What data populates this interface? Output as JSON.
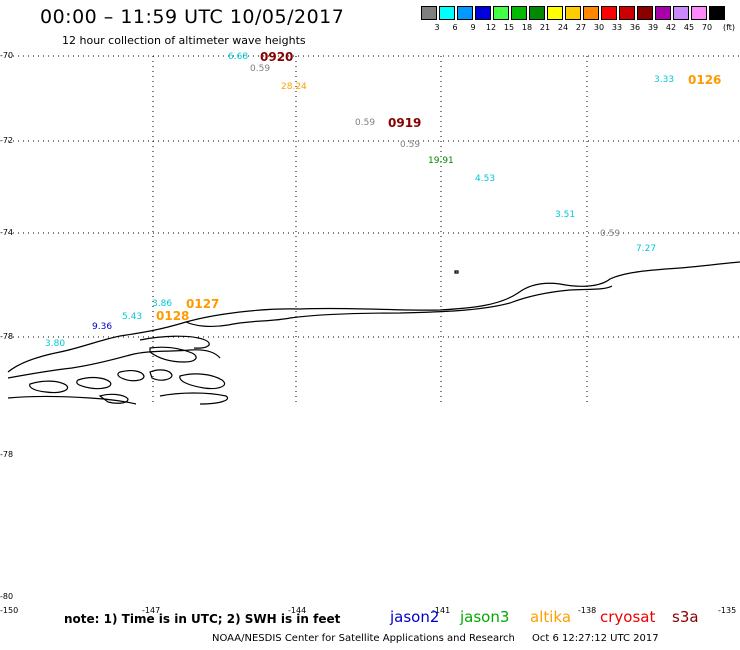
{
  "title": "00:00 – 11:59 UTC 10/05/2017",
  "subtitle": "12 hour collection of altimeter wave heights",
  "scale": {
    "unit": "(ft)",
    "steps": [
      {
        "label": "3",
        "color": "#7f7f7f"
      },
      {
        "label": "6",
        "color": "#00ffff"
      },
      {
        "label": "9",
        "color": "#0099ff"
      },
      {
        "label": "12",
        "color": "#0000dd"
      },
      {
        "label": "15",
        "color": "#44ff44"
      },
      {
        "label": "18",
        "color": "#00bb00"
      },
      {
        "label": "21",
        "color": "#008800"
      },
      {
        "label": "24",
        "color": "#ffff00"
      },
      {
        "label": "27",
        "color": "#ffcc00"
      },
      {
        "label": "30",
        "color": "#ff8800"
      },
      {
        "label": "33",
        "color": "#ff0000"
      },
      {
        "label": "36",
        "color": "#cc0000"
      },
      {
        "label": "39",
        "color": "#880000"
      },
      {
        "label": "42",
        "color": "#aa00aa"
      },
      {
        "label": "45",
        "color": "#cc88ff"
      },
      {
        "label": "70",
        "color": "#ff88ff"
      },
      {
        "label": "",
        "color": "#000000"
      }
    ]
  },
  "lat_labels": [
    "-70",
    "-72",
    "-74",
    "-78",
    "-78",
    "-80"
  ],
  "lon_labels": [
    "-150",
    "-147",
    "-144",
    "-141",
    "-138",
    "-135"
  ],
  "observations": [
    {
      "text": "6.68",
      "color": "#00c8d8"
    },
    {
      "text": "0920",
      "color": "#880000"
    },
    {
      "text": "0.59",
      "color": "#7f7f7f"
    },
    {
      "text": "28.24",
      "color": "#ffa000"
    },
    {
      "text": "3.33",
      "color": "#00c8d8"
    },
    {
      "text": "0126",
      "color": "#ff9900"
    },
    {
      "text": "0.59",
      "color": "#7f7f7f"
    },
    {
      "text": "0919",
      "color": "#880000"
    },
    {
      "text": "0.59",
      "color": "#7f7f7f"
    },
    {
      "text": "19.91",
      "color": "#008800"
    },
    {
      "text": "4.53",
      "color": "#00c8d8"
    },
    {
      "text": "3.51",
      "color": "#00c8d8"
    },
    {
      "text": "0.59",
      "color": "#7f7f7f"
    },
    {
      "text": "7.27",
      "color": "#00c8d8"
    },
    {
      "text": "3.86",
      "color": "#00c8d8"
    },
    {
      "text": "0127",
      "color": "#ff9900"
    },
    {
      "text": "5.43",
      "color": "#00c8d8"
    },
    {
      "text": "0128",
      "color": "#ff9900"
    },
    {
      "text": "9.36",
      "color": "#0000cc"
    },
    {
      "text": "3.80",
      "color": "#00c8d8"
    }
  ],
  "note": "note: 1) Time is in UTC; 2) SWH is in feet",
  "satellites": [
    {
      "name": "jason2",
      "color": "#0000cc"
    },
    {
      "name": "jason3",
      "color": "#00aa00"
    },
    {
      "name": "altika",
      "color": "#ffa000"
    },
    {
      "name": "cryosat",
      "color": "#ee0000"
    },
    {
      "name": "s3a",
      "color": "#880000"
    }
  ],
  "credit": "NOAA/NESDIS Center for Satellite Applications and Research",
  "timestamp": "Oct  6 12:27:12 UTC 2017"
}
